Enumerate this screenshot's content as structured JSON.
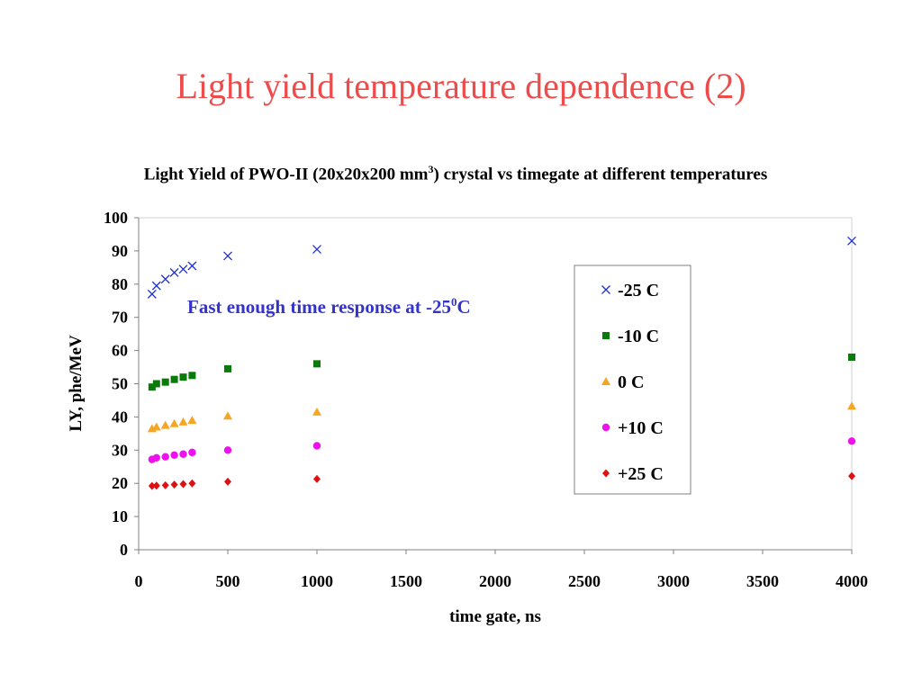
{
  "slide": {
    "title": "Light yield temperature dependence (2)"
  },
  "chart_data": {
    "type": "scatter",
    "title_part1": "Light Yield of PWO-II (20x20x200 mm",
    "title_sup": "3",
    "title_part2": ") crystal vs timegate at different temperatures",
    "xlabel": "time gate, ns",
    "ylabel": "LY, phe/MeV",
    "xlim": [
      0,
      4000
    ],
    "ylim": [
      0,
      100
    ],
    "xticks": [
      "0",
      "500",
      "1000",
      "1500",
      "2000",
      "2500",
      "3000",
      "3500",
      "4000"
    ],
    "yticks": [
      "0",
      "10",
      "20",
      "30",
      "40",
      "50",
      "60",
      "70",
      "80",
      "90",
      "100"
    ],
    "grid": false,
    "legend_position": "right",
    "annotation": {
      "text_part1": "Fast enough time response at -25",
      "text_sup": "0",
      "text_part2": "C",
      "color": "#3333cc"
    },
    "series": [
      {
        "name": "-25 C",
        "marker": "x",
        "color": "#2233cc",
        "x": [
          75,
          100,
          150,
          200,
          250,
          300,
          500,
          1000,
          4000
        ],
        "y": [
          77,
          79.5,
          81.5,
          83.5,
          84.5,
          85.5,
          88.5,
          90.5,
          93
        ]
      },
      {
        "name": "-10 C",
        "marker": "square",
        "color": "#0a7a0a",
        "x": [
          75,
          100,
          150,
          200,
          250,
          300,
          500,
          1000,
          4000
        ],
        "y": [
          49,
          50,
          50.5,
          51.3,
          52,
          52.5,
          54.5,
          56,
          58
        ]
      },
      {
        "name": "0 C",
        "marker": "triangle",
        "color": "#f5a623",
        "x": [
          75,
          100,
          150,
          200,
          250,
          300,
          500,
          1000,
          4000
        ],
        "y": [
          36.5,
          37,
          37.5,
          38,
          38.5,
          39,
          40.3,
          41.5,
          43.3
        ]
      },
      {
        "name": "+10 C",
        "marker": "circle",
        "color": "#ee11ee",
        "x": [
          75,
          100,
          150,
          200,
          250,
          300,
          500,
          1000,
          4000
        ],
        "y": [
          27.2,
          27.7,
          28,
          28.5,
          28.8,
          29.3,
          30,
          31.3,
          32.7
        ]
      },
      {
        "name": "+25 C",
        "marker": "diamond",
        "color": "#dd1111",
        "x": [
          75,
          100,
          150,
          200,
          250,
          300,
          500,
          1000,
          4000
        ],
        "y": [
          19.2,
          19.3,
          19.4,
          19.6,
          19.8,
          20,
          20.5,
          21.3,
          22.2
        ]
      }
    ]
  }
}
